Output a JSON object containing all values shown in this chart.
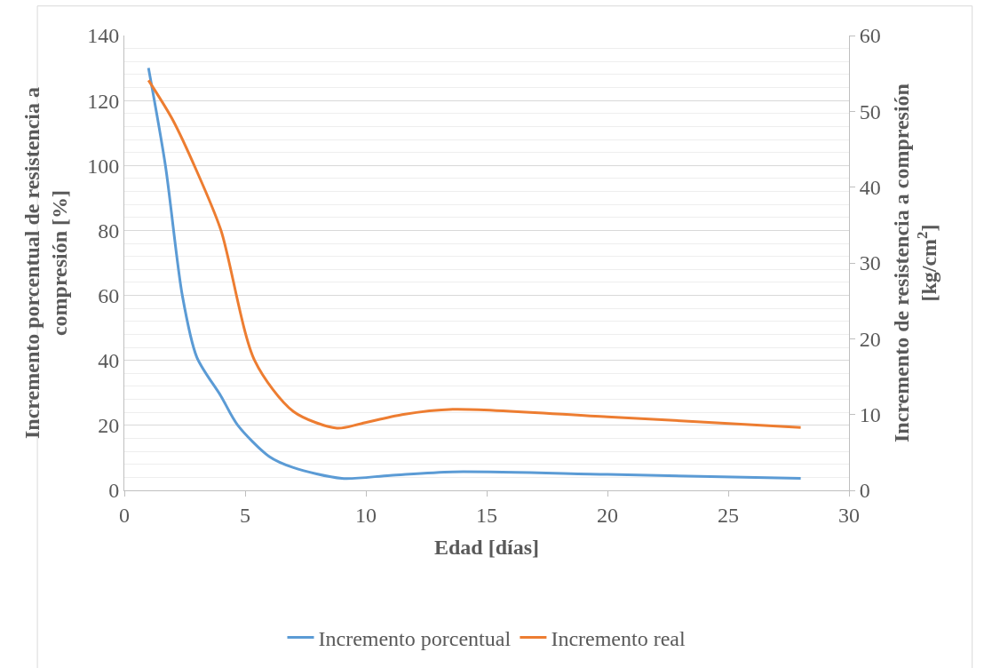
{
  "chart_data": {
    "type": "line",
    "xlabel": "Edad [días]",
    "ylabel": "Incremento porcentual de resistencia a compresión [%]",
    "y2label": "Incremento de resistencia a compresión [kg/cm$^{2}$]",
    "xlim": [
      0,
      30
    ],
    "xticks": [
      0,
      5,
      10,
      15,
      20,
      25,
      30
    ],
    "ylim": [
      0,
      140
    ],
    "yticks": [
      0,
      20,
      40,
      60,
      80,
      100,
      120,
      140
    ],
    "y2lim": [
      0,
      60
    ],
    "y2ticks": [
      0,
      10,
      20,
      30,
      40,
      50,
      60
    ],
    "grid": "y",
    "legend": "bottom",
    "line_style": "solid",
    "marker": "none",
    "series": [
      {
        "name": "Incremento porcentual",
        "color": "#5b9bd5",
        "x": [
          1,
          1.7,
          2.4,
          3,
          4,
          4.7,
          6,
          7,
          9,
          11,
          13.6,
          20,
          28
        ],
        "values": [
          130,
          100,
          60,
          41,
          29,
          20,
          10.4,
          7,
          3.7,
          4.6,
          5.7,
          4.9,
          3.7
        ]
      },
      {
        "name": "Incremento real",
        "color": "#ed7d31",
        "axis": "y2",
        "x": [
          1,
          2,
          3,
          4,
          5.4,
          7,
          8.8,
          9.8,
          11.5,
          13.6,
          20,
          28
        ],
        "values": [
          54.1,
          48.9,
          42.1,
          34.3,
          17.1,
          10.4,
          8.2,
          8.8,
          10,
          10.7,
          9.7,
          8.3
        ]
      }
    ]
  }
}
